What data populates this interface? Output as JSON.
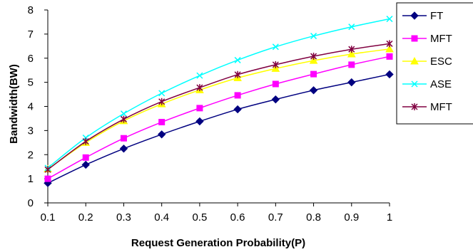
{
  "chart_data": {
    "type": "line",
    "title": "",
    "xlabel": "Request Generation Probability(P)",
    "ylabel": "Bandwidth(BW)",
    "x": [
      0.1,
      0.2,
      0.3,
      0.4,
      0.5,
      0.6,
      0.7,
      0.8,
      0.9,
      1
    ],
    "x_tick_labels": [
      "0.1",
      "0.2",
      "0.3",
      "0.4",
      "0.5",
      "0.6",
      "0.7",
      "0.8",
      "0.9",
      "1"
    ],
    "ylim": [
      0,
      8
    ],
    "y_ticks": [
      0,
      1,
      2,
      3,
      4,
      5,
      6,
      7,
      8
    ],
    "grid": false,
    "legend_position": "right",
    "series": [
      {
        "name": "FT",
        "color": "#000080",
        "marker": "diamond",
        "values": [
          0.82,
          1.58,
          2.25,
          2.84,
          3.38,
          3.88,
          4.29,
          4.67,
          5.0,
          5.33
        ]
      },
      {
        "name": "MFT",
        "color": "#FF00FF",
        "marker": "square",
        "values": [
          1.0,
          1.88,
          2.68,
          3.35,
          3.93,
          4.46,
          4.93,
          5.34,
          5.73,
          6.07
        ]
      },
      {
        "name": "ESC",
        "color": "#FFFF00",
        "marker": "triangle",
        "values": [
          1.4,
          2.5,
          3.4,
          4.1,
          4.68,
          5.18,
          5.57,
          5.9,
          6.17,
          6.38
        ]
      },
      {
        "name": "ASE",
        "color": "#00FFFF",
        "marker": "x",
        "values": [
          1.45,
          2.7,
          3.7,
          4.55,
          5.28,
          5.92,
          6.47,
          6.92,
          7.3,
          7.63
        ]
      },
      {
        "name": "MFT",
        "color": "#800040",
        "marker": "star",
        "values": [
          1.38,
          2.55,
          3.47,
          4.2,
          4.78,
          5.32,
          5.73,
          6.08,
          6.37,
          6.6
        ]
      }
    ]
  }
}
